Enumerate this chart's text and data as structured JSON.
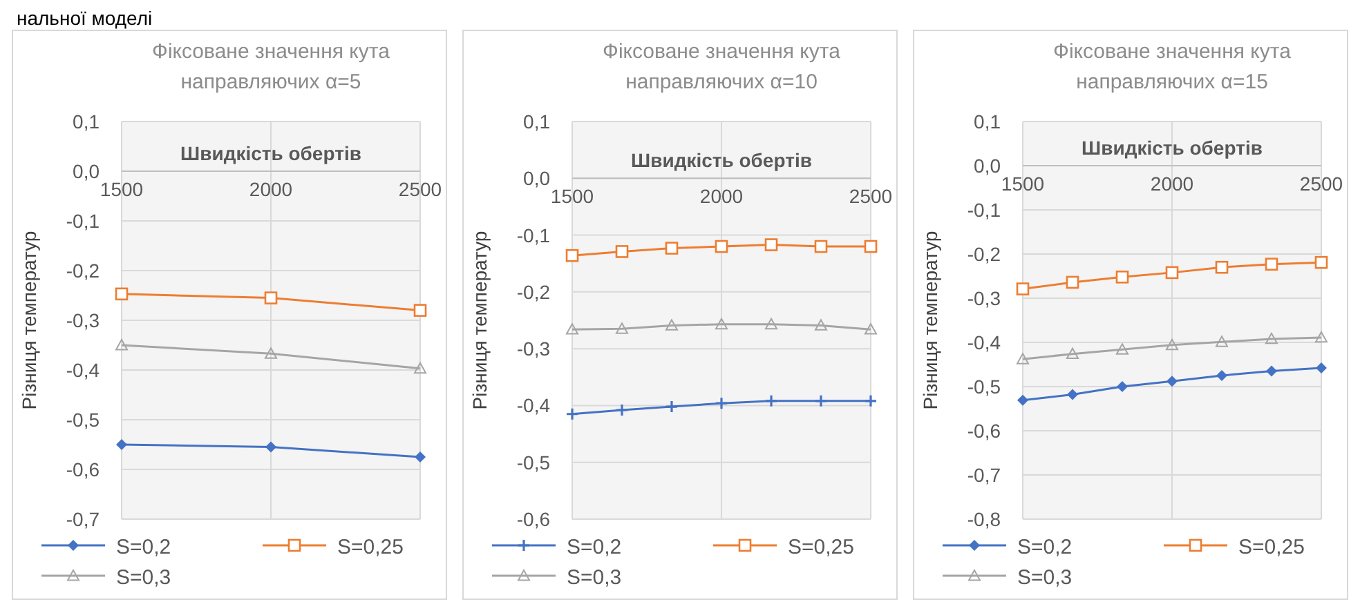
{
  "chart_data": [
    {
      "type": "line",
      "title": "Фіксоване значення кута направляючих α=5",
      "xlabel": "Швидкість обертів",
      "ylabel": "Різниця температур",
      "annotations": [
        "нальної моделі"
      ],
      "x": [
        1500,
        2000,
        2500
      ],
      "xlim": [
        1500,
        2500
      ],
      "xticks": [
        1500,
        2000,
        2500
      ],
      "ylim": [
        -0.7,
        0.1
      ],
      "yticks": [
        {
          "value": 0.1,
          "label": "0,1"
        },
        {
          "value": 0,
          "label": "0,0"
        },
        {
          "value": -0.1,
          "label": "-0,1"
        },
        {
          "value": -0.2,
          "label": "-0,2"
        },
        {
          "value": -0.3,
          "label": "-0,3"
        },
        {
          "value": -0.4,
          "label": "-0,4"
        },
        {
          "value": -0.5,
          "label": "-0,5"
        },
        {
          "value": -0.6,
          "label": "-0,6"
        },
        {
          "value": -0.7,
          "label": "-0,7"
        }
      ],
      "grid": true,
      "legend": "bottom",
      "series": [
        {
          "name": "S=0,2",
          "color": "#4472c4",
          "marker": "diamond",
          "values": [
            -0.55,
            -0.555,
            -0.575
          ]
        },
        {
          "name": "S=0,25",
          "color": "#ed7d31",
          "marker": "square",
          "values": [
            -0.247,
            -0.255,
            -0.28
          ]
        },
        {
          "name": "S=0,3",
          "color": "#a5a5a5",
          "marker": "triangle",
          "values": [
            -0.35,
            -0.367,
            -0.397
          ]
        }
      ]
    },
    {
      "type": "line",
      "title": "Фіксоване значення кута направляючих α=10",
      "xlabel": "Швидкість обертів",
      "ylabel": "Різниця температур",
      "x": [
        1500,
        1666.7,
        1833.3,
        2000,
        2166.7,
        2333.3,
        2500
      ],
      "xlim": [
        1500,
        2500
      ],
      "xticks": [
        1500,
        2000,
        2500
      ],
      "ylim": [
        -0.6,
        0.1
      ],
      "yticks": [
        {
          "value": 0.1,
          "label": "0,1"
        },
        {
          "value": 0,
          "label": "0,0"
        },
        {
          "value": -0.1,
          "label": "-0,1"
        },
        {
          "value": -0.2,
          "label": "-0,2"
        },
        {
          "value": -0.3,
          "label": "-0,3"
        },
        {
          "value": -0.4,
          "label": "-0,4"
        },
        {
          "value": -0.5,
          "label": "-0,5"
        },
        {
          "value": -0.6,
          "label": "-0,6"
        }
      ],
      "grid": true,
      "legend": "bottom",
      "series": [
        {
          "name": "S=0,2",
          "color": "#4472c4",
          "marker": "cross",
          "values": [
            -0.415,
            -0.408,
            -0.402,
            -0.396,
            -0.392,
            -0.392,
            -0.392
          ]
        },
        {
          "name": "S=0,25",
          "color": "#ed7d31",
          "marker": "square",
          "values": [
            -0.136,
            -0.129,
            -0.123,
            -0.12,
            -0.117,
            -0.12,
            -0.12
          ]
        },
        {
          "name": "S=0,3",
          "color": "#a5a5a5",
          "marker": "triangle",
          "values": [
            -0.266,
            -0.265,
            -0.259,
            -0.257,
            -0.257,
            -0.259,
            -0.266
          ]
        }
      ]
    },
    {
      "type": "line",
      "title": "Фіксоване значення кута направляючих α=15",
      "xlabel": "Швидкість обертів",
      "ylabel": "Різниця температур",
      "x": [
        1500,
        1666.7,
        1833.3,
        2000,
        2166.7,
        2333.3,
        2500
      ],
      "xlim": [
        1500,
        2500
      ],
      "xticks": [
        1500,
        2000,
        2500
      ],
      "ylim": [
        -0.8,
        0.1
      ],
      "yticks": [
        {
          "value": 0.1,
          "label": "0,1"
        },
        {
          "value": 0,
          "label": "0,0"
        },
        {
          "value": -0.1,
          "label": "-0,1"
        },
        {
          "value": -0.2,
          "label": "-0,2"
        },
        {
          "value": -0.3,
          "label": "-0,3"
        },
        {
          "value": -0.4,
          "label": "-0,4"
        },
        {
          "value": -0.5,
          "label": "-0,5"
        },
        {
          "value": -0.6,
          "label": "-0,6"
        },
        {
          "value": -0.7,
          "label": "-0,7"
        },
        {
          "value": -0.8,
          "label": "-0,8"
        }
      ],
      "grid": true,
      "legend": "bottom",
      "series": [
        {
          "name": "S=0,2",
          "color": "#4472c4",
          "marker": "diamond",
          "values": [
            -0.531,
            -0.518,
            -0.5,
            -0.488,
            -0.475,
            -0.465,
            -0.458
          ]
        },
        {
          "name": "S=0,25",
          "color": "#ed7d31",
          "marker": "square",
          "values": [
            -0.279,
            -0.264,
            -0.252,
            -0.242,
            -0.23,
            -0.223,
            -0.219
          ]
        },
        {
          "name": "S=0,3",
          "color": "#a5a5a5",
          "marker": "triangle",
          "values": [
            -0.438,
            -0.426,
            -0.416,
            -0.406,
            -0.399,
            -0.392,
            -0.389
          ]
        }
      ]
    }
  ]
}
